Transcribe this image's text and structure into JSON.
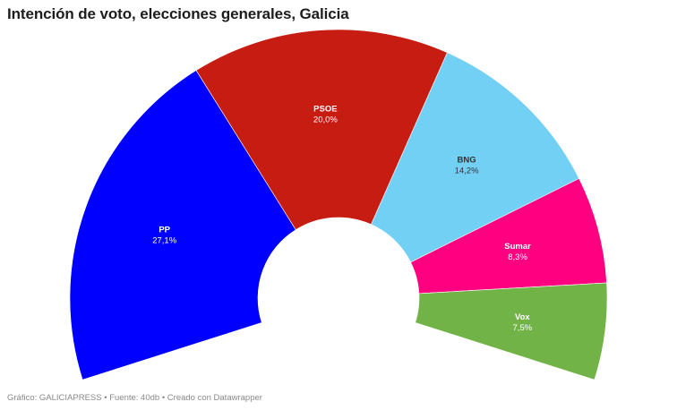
{
  "header": {
    "title": "Intención de voto, elecciones generales, Galicia"
  },
  "footer": {
    "text": "Gráfico: GALICIAPRESS • Fuente: 40db  • Creado con Datawrapper"
  },
  "chart_data": {
    "type": "pie",
    "subtype": "parliament-half-donut",
    "title": "Intención de voto, elecciones generales, Galicia",
    "categories": [
      "PP",
      "PSOE",
      "BNG",
      "Sumar",
      "Vox"
    ],
    "values": [
      27.1,
      20.0,
      14.2,
      8.3,
      7.5
    ],
    "value_labels": [
      "27,1%",
      "20,0%",
      "14,2%",
      "8,3%",
      "7,5%"
    ],
    "colors": [
      "#0000ff",
      "#c61c12",
      "#71d0f4",
      "#ff0080",
      "#72b347"
    ],
    "label_colors": [
      "#ffffff",
      "#ffffff",
      "#333333",
      "#ffffff",
      "#ffffff"
    ],
    "unit": "%",
    "source": "40db"
  }
}
